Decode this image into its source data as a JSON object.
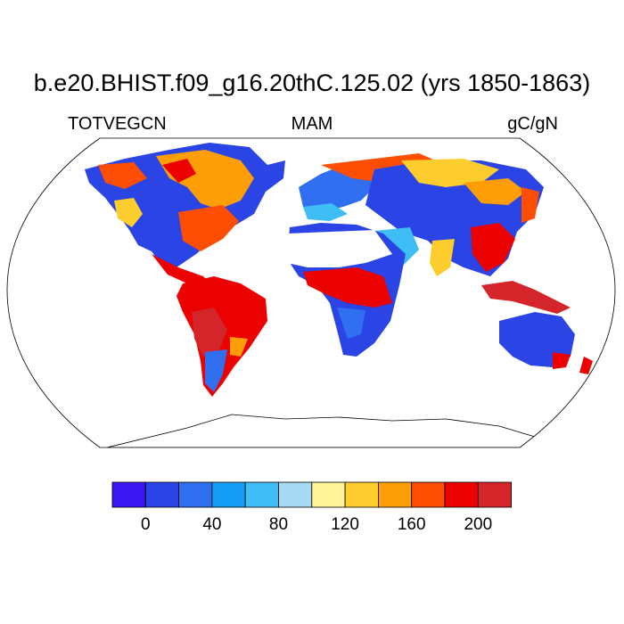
{
  "title": "b.e20.BHIST.f09_g16.20thC.125.02 (yrs 1850-1863)",
  "variable": "TOTVEGCN",
  "season": "MAM",
  "units": "gC/gN",
  "projection": "Robinson",
  "colorbar": {
    "colors": [
      "#3a16f0",
      "#2a44e6",
      "#2f6ff0",
      "#159ef7",
      "#3fbdf5",
      "#a6daf2",
      "#fff598",
      "#fdcd2d",
      "#fd9e07",
      "#fd4e04",
      "#ec0101",
      "#d4252b"
    ],
    "tick_labels": [
      "0",
      "40",
      "80",
      "120",
      "160",
      "200"
    ]
  }
}
